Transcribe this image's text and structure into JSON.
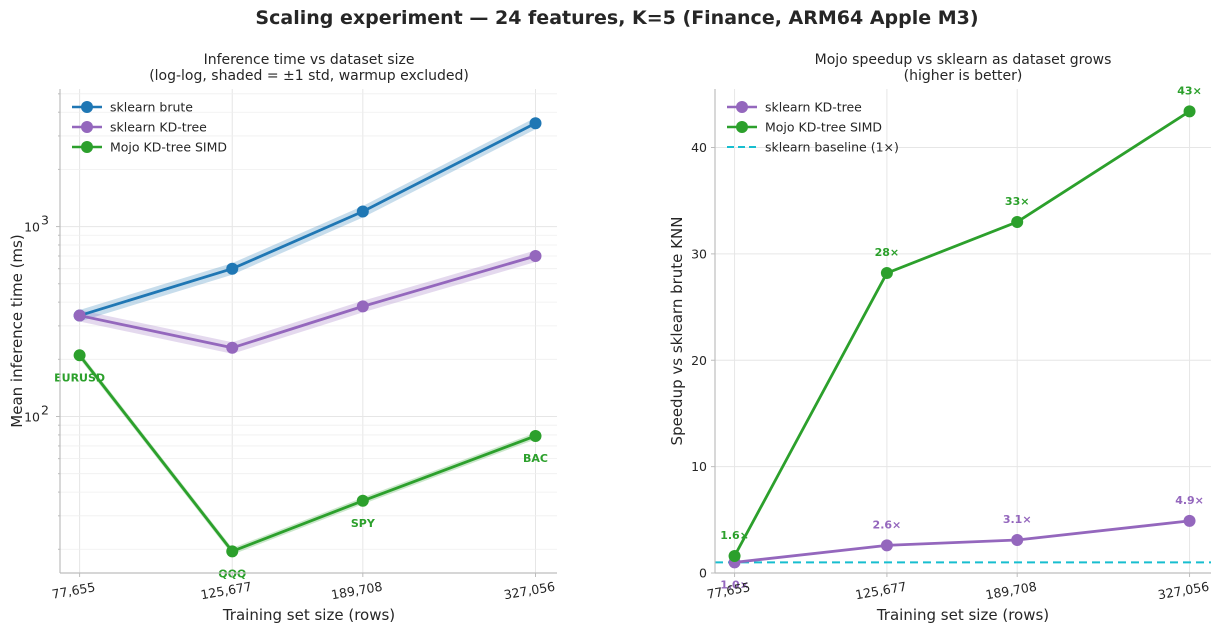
{
  "suptitle": "Scaling experiment — 24 features, K=5  (Finance, ARM64 Apple M3)",
  "colors": {
    "sklearn_brute": "#1f77b4",
    "sklearn_kdtree": "#9467bd",
    "mojo_simd": "#2ca02c",
    "baseline": "#17becf"
  },
  "chart_data": [
    {
      "type": "line",
      "title": "Inference time vs dataset size",
      "subtitle": "(log-log, shaded = ±1 std, warmup excluded)",
      "xlabel": "Training set size (rows)",
      "ylabel": "Mean inference time (ms)",
      "x_scale": "log",
      "y_scale": "log",
      "x": [
        77655,
        125677,
        189708,
        327056
      ],
      "x_tick_labels": [
        "77,655",
        "125,677",
        "189,708",
        "327,056"
      ],
      "xlim": [
        73000,
        350000
      ],
      "ylim": [
        15,
        5300
      ],
      "y_ticks": [
        {
          "value": 100,
          "label": "10",
          "exp": "2"
        },
        {
          "value": 1000,
          "label": "10",
          "exp": "3"
        }
      ],
      "grid": true,
      "legend": "upper-left",
      "series": [
        {
          "name": "sklearn brute",
          "key": "sklearn_brute",
          "values": [
            340,
            600,
            1200,
            3500
          ],
          "std_frac": 0.07
        },
        {
          "name": "sklearn KD-tree",
          "key": "sklearn_kdtree",
          "values": [
            340,
            230,
            380,
            700
          ],
          "std_frac": 0.07
        },
        {
          "name": "Mojo KD-tree SIMD",
          "key": "mojo_simd",
          "values": [
            210,
            19.5,
            36,
            79
          ],
          "std_frac": 0.04
        }
      ],
      "point_labels": [
        "EURUSD",
        "QQQ",
        "SPY",
        "BAC"
      ]
    },
    {
      "type": "line",
      "title": "Mojo speedup vs sklearn as dataset grows",
      "subtitle": "(higher is better)",
      "xlabel": "Training set size (rows)",
      "ylabel": "Speedup vs sklearn brute KNN",
      "x_scale": "log",
      "y_scale": "linear",
      "x": [
        77655,
        125677,
        189708,
        327056
      ],
      "x_tick_labels": [
        "77,655",
        "125,677",
        "189,708",
        "327,056"
      ],
      "xlim": [
        73000,
        350000
      ],
      "ylim": [
        0,
        45.5
      ],
      "y_ticks": [
        0,
        10,
        20,
        30,
        40
      ],
      "grid": true,
      "legend": "upper-left",
      "series": [
        {
          "name": "sklearn KD-tree",
          "key": "sklearn_kdtree",
          "values": [
            1.0,
            2.6,
            3.1,
            4.9
          ],
          "labels": [
            "1.0×",
            "2.6×",
            "3.1×",
            "4.9×"
          ]
        },
        {
          "name": "Mojo KD-tree SIMD",
          "key": "mojo_simd",
          "values": [
            1.6,
            28.2,
            33.0,
            43.4
          ],
          "labels": [
            "1.6×",
            "28×",
            "33×",
            "43×"
          ]
        }
      ],
      "baseline": {
        "name": "sklearn baseline (1×)",
        "key": "baseline",
        "value": 1
      }
    }
  ]
}
